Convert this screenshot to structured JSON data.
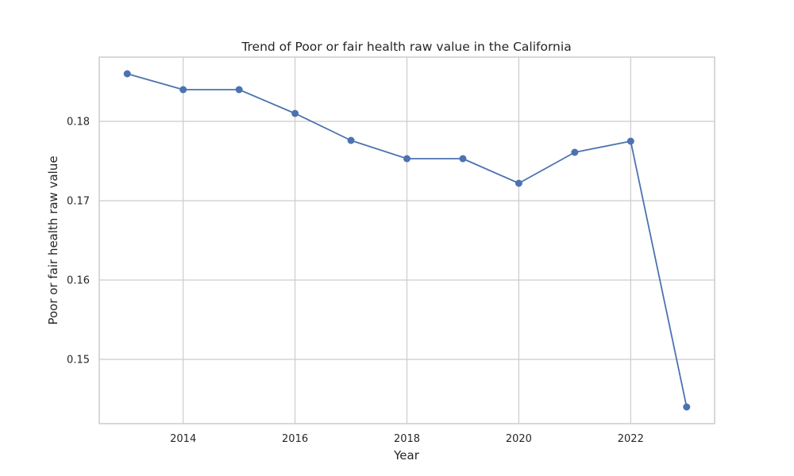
{
  "chart_data": {
    "type": "line",
    "title": "Trend of Poor or fair health raw value in the California",
    "xlabel": "Year",
    "ylabel": "Poor or fair health raw value",
    "xlim": [
      2012.5,
      2023.5
    ],
    "ylim": [
      0.1419,
      0.1881
    ],
    "x_ticks": [
      2014,
      2016,
      2018,
      2020,
      2022
    ],
    "y_ticks": [
      0.15,
      0.16,
      0.17,
      0.18
    ],
    "y_tick_labels": [
      "0.15",
      "0.16",
      "0.17",
      "0.18"
    ],
    "grid": true,
    "series": [
      {
        "color": "#4c72b0",
        "marker": "circle",
        "x": [
          2013,
          2014,
          2015,
          2016,
          2017,
          2018,
          2019,
          2020,
          2021,
          2022,
          2023
        ],
        "y": [
          0.186,
          0.184,
          0.184,
          0.181,
          0.1776,
          0.1753,
          0.1753,
          0.1722,
          0.1761,
          0.1775,
          0.144
        ]
      }
    ]
  }
}
